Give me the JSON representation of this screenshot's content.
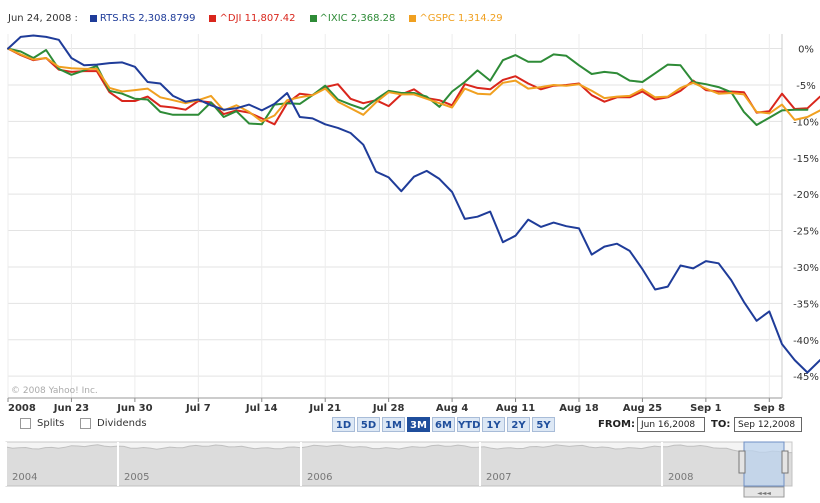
{
  "legend": {
    "date": "Jun 24, 2008 :",
    "items": [
      {
        "label": "RTS.RS 2,308.8799",
        "color": "#1f3c99"
      },
      {
        "label": "^DJI 11,807.42",
        "color": "#d9261c"
      },
      {
        "label": "^IXIC 2,368.28",
        "color": "#2e8b37"
      },
      {
        "label": "^GSPC 1,314.29",
        "color": "#f0a020"
      }
    ]
  },
  "watermark": "© 2008 Yahoo! Inc.",
  "controls": {
    "splits_label": "Splits",
    "dividends_label": "Dividends",
    "ranges": [
      "1D",
      "5D",
      "1M",
      "3M",
      "6M",
      "YTD",
      "1Y",
      "2Y",
      "5Y"
    ],
    "active_range": "3M",
    "from_label": "FROM:",
    "from_value": "Jun 16,2008",
    "to_label": "TO:",
    "to_value": "Sep 12,2008"
  },
  "overview": {
    "years": [
      "2004",
      "2005",
      "2006",
      "2007",
      "2008"
    ],
    "handle_glyph": "◄◄◄"
  },
  "chart_data": {
    "type": "line",
    "x_tick_labels": [
      "2008",
      "Jun 23",
      "Jun 30",
      "Jul 7",
      "Jul 14",
      "Jul 21",
      "Jul 28",
      "Aug 4",
      "Aug 11",
      "Aug 18",
      "Aug 25",
      "Sep 1",
      "Sep 8"
    ],
    "y_tick_labels": [
      "0%",
      "-5%",
      "-10%",
      "-15%",
      "-20%",
      "-25%",
      "-30%",
      "-35%",
      "-40%",
      "-45%"
    ],
    "ylim": [
      -48,
      2
    ],
    "ytick_values": [
      0,
      -5,
      -10,
      -15,
      -20,
      -25,
      -30,
      -35,
      -40,
      -45
    ],
    "x_index_range": [
      0,
      61
    ],
    "xtick_positions": [
      0,
      5,
      10,
      15,
      20,
      25,
      30,
      35,
      40,
      45,
      50,
      55,
      60
    ],
    "grid": true,
    "y_axis_side": "right",
    "series": [
      {
        "name": "RTS.RS",
        "color": "#1f3c99",
        "values": [
          0,
          1.6,
          1.8,
          1.6,
          1.2,
          -1.3,
          -2.3,
          -2.2,
          -2.0,
          -1.9,
          -2.5,
          -4.6,
          -4.8,
          -6.5,
          -7.3,
          -7.0,
          -7.8,
          -8.4,
          -8.2,
          -7.7,
          -8.5,
          -7.6,
          -6.1,
          -9.4,
          -9.6,
          -10.4,
          -10.9,
          -11.6,
          -13.2,
          -16.9,
          -17.7,
          -19.6,
          -17.6,
          -16.8,
          -17.9,
          -19.7,
          -23.4,
          -23.1,
          -22.4,
          -26.6,
          -25.7,
          -23.5,
          -24.5,
          -23.9,
          -24.4,
          -24.7,
          -28.3,
          -27.2,
          -26.8,
          -27.8,
          -30.3,
          -33.1,
          -32.7,
          -29.8,
          -30.2,
          -29.2,
          -29.5,
          -31.8,
          -34.8,
          -37.4,
          -36.1,
          -40.6,
          -42.8,
          -44.5,
          -42.8
        ]
      },
      {
        "name": "^DJI",
        "color": "#d9261c",
        "values": [
          0,
          -0.9,
          -1.6,
          -1.3,
          -2.9,
          -3.2,
          -3.1,
          -3.1,
          -6.0,
          -7.2,
          -7.2,
          -6.6,
          -7.9,
          -8.1,
          -8.4,
          -7.2,
          -7.4,
          -9.0,
          -8.5,
          -8.8,
          -9.6,
          -10.4,
          -7.5,
          -6.2,
          -6.4,
          -5.3,
          -4.9,
          -6.9,
          -7.5,
          -7.1,
          -7.9,
          -6.3,
          -5.6,
          -6.8,
          -7.1,
          -7.8,
          -4.9,
          -5.4,
          -5.6,
          -4.3,
          -3.8,
          -4.8,
          -5.6,
          -5.1,
          -5.0,
          -4.8,
          -6.4,
          -7.3,
          -6.7,
          -6.7,
          -5.9,
          -7.0,
          -6.7,
          -5.8,
          -4.4,
          -5.7,
          -5.9,
          -5.9,
          -6.0,
          -8.8,
          -8.6,
          -6.2,
          -8.3,
          -8.2,
          -6.6,
          -6.8
        ]
      },
      {
        "name": "^IXIC",
        "color": "#2e8b37",
        "values": [
          0,
          -0.4,
          -1.3,
          -0.2,
          -2.8,
          -3.6,
          -3.0,
          -2.4,
          -5.8,
          -6.2,
          -6.9,
          -7.0,
          -8.7,
          -9.1,
          -9.1,
          -9.1,
          -7.4,
          -9.4,
          -8.6,
          -10.3,
          -10.4,
          -7.7,
          -7.5,
          -7.6,
          -6.4,
          -5.1,
          -7.0,
          -7.7,
          -8.3,
          -7.0,
          -5.8,
          -6.1,
          -6.1,
          -6.6,
          -8.0,
          -5.9,
          -4.6,
          -3.0,
          -4.4,
          -1.6,
          -0.9,
          -1.8,
          -1.8,
          -0.8,
          -1.0,
          -2.3,
          -3.5,
          -3.2,
          -3.4,
          -4.4,
          -4.6,
          -3.4,
          -2.2,
          -2.3,
          -4.6,
          -4.9,
          -5.3,
          -6.0,
          -8.7,
          -10.5,
          -9.5,
          -8.5,
          -8.4,
          -8.4
        ]
      },
      {
        "name": "^GSPC",
        "color": "#f0a020",
        "values": [
          0,
          -0.8,
          -1.5,
          -1.3,
          -2.5,
          -2.7,
          -2.8,
          -2.8,
          -5.4,
          -5.9,
          -5.7,
          -5.5,
          -6.7,
          -7.1,
          -7.5,
          -7.1,
          -6.5,
          -8.5,
          -7.8,
          -8.7,
          -10.0,
          -9.2,
          -7.1,
          -6.7,
          -6.4,
          -5.5,
          -7.3,
          -8.2,
          -9.1,
          -7.4,
          -6.0,
          -6.3,
          -6.3,
          -6.9,
          -7.5,
          -8.1,
          -5.5,
          -6.2,
          -6.3,
          -4.7,
          -4.4,
          -5.5,
          -5.3,
          -5.0,
          -5.1,
          -4.9,
          -5.8,
          -6.8,
          -6.6,
          -6.5,
          -5.6,
          -6.7,
          -6.6,
          -5.4,
          -4.7,
          -5.5,
          -6.2,
          -6.1,
          -6.3,
          -8.7,
          -8.9,
          -7.7,
          -9.8,
          -9.4,
          -8.5,
          -8.0
        ]
      }
    ]
  }
}
